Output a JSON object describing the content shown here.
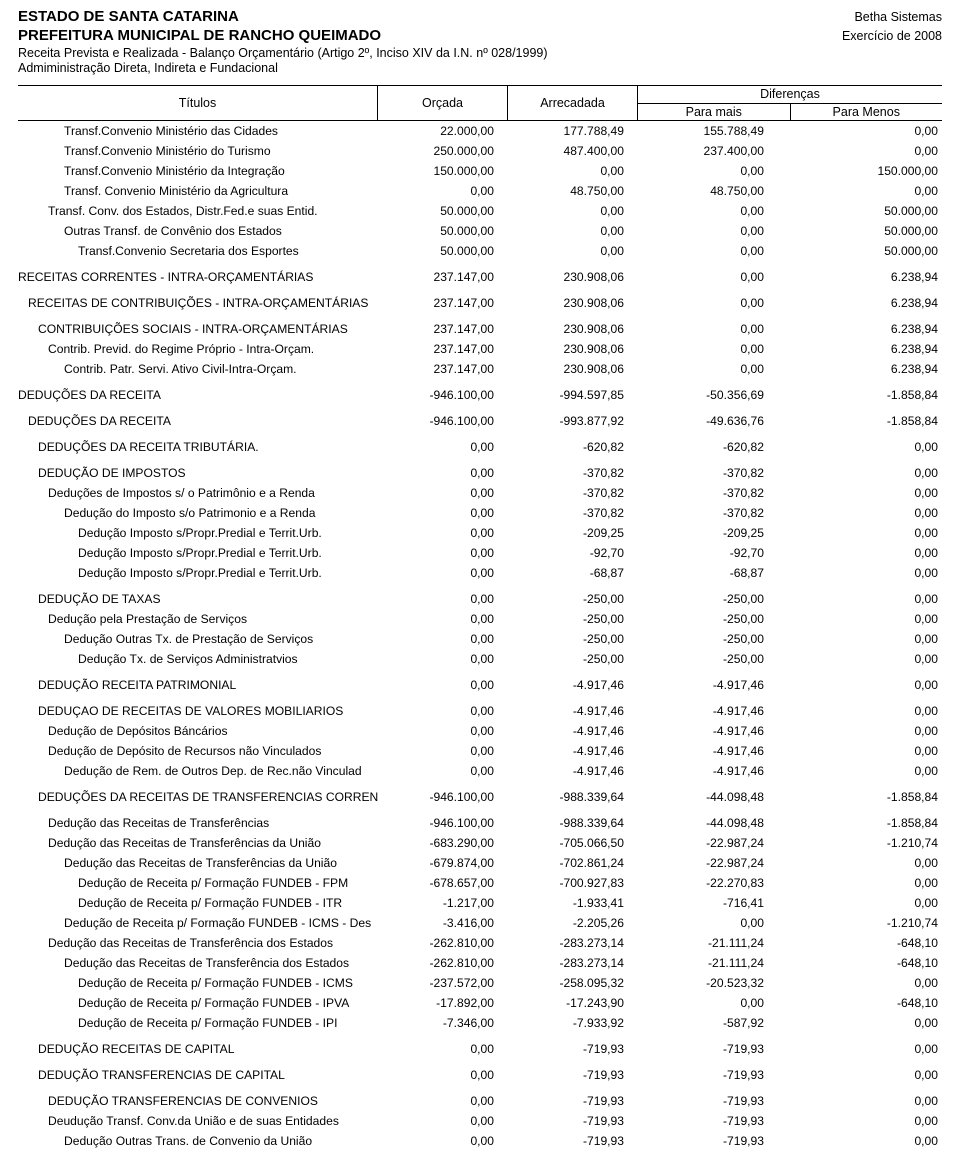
{
  "header": {
    "entity1": "ESTADO DE SANTA CATARINA",
    "entity2": "PREFEITURA MUNICIPAL DE RANCHO QUEIMADO",
    "sub1": "Receita Prevista e Realizada - Balanço Orçamentário (Artigo 2º, Inciso XIV da I.N. nº 028/1999)",
    "sub2": "Admiministração Direta, Indireta e Fundacional",
    "meta1": "Betha Sistemas",
    "meta2": "Exercício de 2008"
  },
  "columns": {
    "titulos": "Títulos",
    "orcada": "Orçada",
    "arrecadada": "Arrecadada",
    "diferencas": "Diferenças",
    "para_mais": "Para mais",
    "para_menos": "Para Menos"
  },
  "rows": [
    {
      "indent": 4,
      "bold": false,
      "gap": false,
      "title": "Transf.Convenio Ministério das Cidades",
      "c1": "22.000,00",
      "c2": "177.788,49",
      "c3": "155.788,49",
      "c4": "0,00"
    },
    {
      "indent": 4,
      "bold": false,
      "gap": false,
      "title": "Transf.Convenio Ministério do Turismo",
      "c1": "250.000,00",
      "c2": "487.400,00",
      "c3": "237.400,00",
      "c4": "0,00"
    },
    {
      "indent": 4,
      "bold": false,
      "gap": false,
      "title": "Transf.Convenio Ministério da Integração",
      "c1": "150.000,00",
      "c2": "0,00",
      "c3": "0,00",
      "c4": "150.000,00"
    },
    {
      "indent": 4,
      "bold": false,
      "gap": false,
      "title": "Transf. Convenio Ministério da Agricultura",
      "c1": "0,00",
      "c2": "48.750,00",
      "c3": "48.750,00",
      "c4": "0,00"
    },
    {
      "indent": 3,
      "bold": false,
      "gap": false,
      "title": "Transf. Conv. dos Estados, Distr.Fed.e suas Entid.",
      "c1": "50.000,00",
      "c2": "0,00",
      "c3": "0,00",
      "c4": "50.000,00"
    },
    {
      "indent": 4,
      "bold": false,
      "gap": false,
      "title": "Outras Transf. de Convênio dos Estados",
      "c1": "50.000,00",
      "c2": "0,00",
      "c3": "0,00",
      "c4": "50.000,00"
    },
    {
      "indent": 5,
      "bold": false,
      "gap": false,
      "title": "Transf.Convenio Secretaria dos Esportes",
      "c1": "50.000,00",
      "c2": "0,00",
      "c3": "0,00",
      "c4": "50.000,00"
    },
    {
      "indent": 0,
      "bold": false,
      "gap": true,
      "title": "RECEITAS CORRENTES - INTRA-ORÇAMENTÁRIAS",
      "c1": "237.147,00",
      "c2": "230.908,06",
      "c3": "0,00",
      "c4": "6.238,94"
    },
    {
      "indent": 1,
      "bold": false,
      "gap": true,
      "title": "RECEITAS DE CONTRIBUIÇÕES - INTRA-ORÇAMENTÁRIAS",
      "c1": "237.147,00",
      "c2": "230.908,06",
      "c3": "0,00",
      "c4": "6.238,94"
    },
    {
      "indent": 2,
      "bold": false,
      "gap": true,
      "title": "CONTRIBUIÇÕES SOCIAIS - INTRA-ORÇAMENTÁRIAS",
      "c1": "237.147,00",
      "c2": "230.908,06",
      "c3": "0,00",
      "c4": "6.238,94"
    },
    {
      "indent": 3,
      "bold": false,
      "gap": false,
      "title": "Contrib. Previd. do Regime Próprio - Intra-Orçam.",
      "c1": "237.147,00",
      "c2": "230.908,06",
      "c3": "0,00",
      "c4": "6.238,94"
    },
    {
      "indent": 4,
      "bold": false,
      "gap": false,
      "title": "Contrib. Patr. Servi. Ativo Civil-Intra-Orçam.",
      "c1": "237.147,00",
      "c2": "230.908,06",
      "c3": "0,00",
      "c4": "6.238,94"
    },
    {
      "indent": 0,
      "bold": false,
      "gap": true,
      "title": "DEDUÇÕES DA RECEITA",
      "c1": "-946.100,00",
      "c2": "-994.597,85",
      "c3": "-50.356,69",
      "c4": "-1.858,84"
    },
    {
      "indent": 1,
      "bold": false,
      "gap": true,
      "title": "DEDUÇÕES DA RECEITA",
      "c1": "-946.100,00",
      "c2": "-993.877,92",
      "c3": "-49.636,76",
      "c4": "-1.858,84"
    },
    {
      "indent": 2,
      "bold": false,
      "gap": true,
      "title": "DEDUÇÕES DA RECEITA TRIBUTÁRIA.",
      "c1": "0,00",
      "c2": "-620,82",
      "c3": "-620,82",
      "c4": "0,00"
    },
    {
      "indent": 2,
      "bold": false,
      "gap": true,
      "title": "DEDUÇÃO DE IMPOSTOS",
      "c1": "0,00",
      "c2": "-370,82",
      "c3": "-370,82",
      "c4": "0,00"
    },
    {
      "indent": 3,
      "bold": false,
      "gap": false,
      "title": "Deduções de Impostos s/ o Patrimônio e a Renda",
      "c1": "0,00",
      "c2": "-370,82",
      "c3": "-370,82",
      "c4": "0,00"
    },
    {
      "indent": 4,
      "bold": false,
      "gap": false,
      "title": "Dedução do Imposto s/o Patrimonio e a Renda",
      "c1": "0,00",
      "c2": "-370,82",
      "c3": "-370,82",
      "c4": "0,00"
    },
    {
      "indent": 5,
      "bold": false,
      "gap": false,
      "title": "Dedução Imposto s/Propr.Predial e Territ.Urb.",
      "c1": "0,00",
      "c2": "-209,25",
      "c3": "-209,25",
      "c4": "0,00"
    },
    {
      "indent": 5,
      "bold": false,
      "gap": false,
      "title": "Dedução Imposto s/Propr.Predial e Territ.Urb.",
      "c1": "0,00",
      "c2": "-92,70",
      "c3": "-92,70",
      "c4": "0,00"
    },
    {
      "indent": 5,
      "bold": false,
      "gap": false,
      "title": "Dedução Imposto s/Propr.Predial e Territ.Urb.",
      "c1": "0,00",
      "c2": "-68,87",
      "c3": "-68,87",
      "c4": "0,00"
    },
    {
      "indent": 2,
      "bold": false,
      "gap": true,
      "title": "DEDUÇÃO DE TAXAS",
      "c1": "0,00",
      "c2": "-250,00",
      "c3": "-250,00",
      "c4": "0,00"
    },
    {
      "indent": 3,
      "bold": false,
      "gap": false,
      "title": "Dedução pela Prestação de Serviços",
      "c1": "0,00",
      "c2": "-250,00",
      "c3": "-250,00",
      "c4": "0,00"
    },
    {
      "indent": 4,
      "bold": false,
      "gap": false,
      "title": "Dedução Outras Tx. de Prestação de Serviços",
      "c1": "0,00",
      "c2": "-250,00",
      "c3": "-250,00",
      "c4": "0,00"
    },
    {
      "indent": 5,
      "bold": false,
      "gap": false,
      "title": "Dedução Tx. de Serviços Administratvios",
      "c1": "0,00",
      "c2": "-250,00",
      "c3": "-250,00",
      "c4": "0,00"
    },
    {
      "indent": 2,
      "bold": false,
      "gap": true,
      "title": "DEDUÇÃO RECEITA PATRIMONIAL",
      "c1": "0,00",
      "c2": "-4.917,46",
      "c3": "-4.917,46",
      "c4": "0,00"
    },
    {
      "indent": 2,
      "bold": false,
      "gap": true,
      "title": "DEDUÇAO DE RECEITAS DE VALORES MOBILIARIOS",
      "c1": "0,00",
      "c2": "-4.917,46",
      "c3": "-4.917,46",
      "c4": "0,00"
    },
    {
      "indent": 3,
      "bold": false,
      "gap": false,
      "title": "Dedução de Depósitos Báncários",
      "c1": "0,00",
      "c2": "-4.917,46",
      "c3": "-4.917,46",
      "c4": "0,00"
    },
    {
      "indent": 3,
      "bold": false,
      "gap": false,
      "title": "Dedução de Depósito de Recursos não Vinculados",
      "c1": "0,00",
      "c2": "-4.917,46",
      "c3": "-4.917,46",
      "c4": "0,00"
    },
    {
      "indent": 4,
      "bold": false,
      "gap": false,
      "title": "Dedução de Rem. de Outros Dep. de Rec.não Vinculad",
      "c1": "0,00",
      "c2": "-4.917,46",
      "c3": "-4.917,46",
      "c4": "0,00"
    },
    {
      "indent": 2,
      "bold": false,
      "gap": true,
      "title": "DEDUÇÕES DA RECEITAS DE TRANSFERENCIAS CORRENTE",
      "c1": "-946.100,00",
      "c2": "-988.339,64",
      "c3": "-44.098,48",
      "c4": "-1.858,84"
    },
    {
      "indent": 3,
      "bold": false,
      "gap": true,
      "title": "Dedução das Receitas de Transferências",
      "c1": "-946.100,00",
      "c2": "-988.339,64",
      "c3": "-44.098,48",
      "c4": "-1.858,84"
    },
    {
      "indent": 3,
      "bold": false,
      "gap": false,
      "title": "Dedução das Receitas de Transferências da União",
      "c1": "-683.290,00",
      "c2": "-705.066,50",
      "c3": "-22.987,24",
      "c4": "-1.210,74"
    },
    {
      "indent": 4,
      "bold": false,
      "gap": false,
      "title": "Dedução das Receitas de Transferências da União",
      "c1": "-679.874,00",
      "c2": "-702.861,24",
      "c3": "-22.987,24",
      "c4": "0,00"
    },
    {
      "indent": 5,
      "bold": false,
      "gap": false,
      "title": "Dedução de Receita p/ Formação FUNDEB - FPM",
      "c1": "-678.657,00",
      "c2": "-700.927,83",
      "c3": "-22.270,83",
      "c4": "0,00"
    },
    {
      "indent": 5,
      "bold": false,
      "gap": false,
      "title": "Dedução de Receita p/ Formação FUNDEB - ITR",
      "c1": "-1.217,00",
      "c2": "-1.933,41",
      "c3": "-716,41",
      "c4": "0,00"
    },
    {
      "indent": 4,
      "bold": false,
      "gap": false,
      "title": "Dedução de Receita p/ Formação FUNDEB - ICMS - Des",
      "c1": "-3.416,00",
      "c2": "-2.205,26",
      "c3": "0,00",
      "c4": "-1.210,74"
    },
    {
      "indent": 3,
      "bold": false,
      "gap": false,
      "title": "Dedução das Receitas de Transferência dos Estados",
      "c1": "-262.810,00",
      "c2": "-283.273,14",
      "c3": "-21.111,24",
      "c4": "-648,10"
    },
    {
      "indent": 4,
      "bold": false,
      "gap": false,
      "title": "Dedução das Receitas de Transferência dos Estados",
      "c1": "-262.810,00",
      "c2": "-283.273,14",
      "c3": "-21.111,24",
      "c4": "-648,10"
    },
    {
      "indent": 5,
      "bold": false,
      "gap": false,
      "title": "Dedução de Receita p/ Formação FUNDEB - ICMS",
      "c1": "-237.572,00",
      "c2": "-258.095,32",
      "c3": "-20.523,32",
      "c4": "0,00"
    },
    {
      "indent": 5,
      "bold": false,
      "gap": false,
      "title": "Dedução de Receita p/ Formação FUNDEB - IPVA",
      "c1": "-17.892,00",
      "c2": "-17.243,90",
      "c3": "0,00",
      "c4": "-648,10"
    },
    {
      "indent": 5,
      "bold": false,
      "gap": false,
      "title": "Dedução de Receita p/ Formação FUNDEB - IPI",
      "c1": "-7.346,00",
      "c2": "-7.933,92",
      "c3": "-587,92",
      "c4": "0,00"
    },
    {
      "indent": 2,
      "bold": false,
      "gap": true,
      "title": "DEDUÇÃO RECEITAS DE CAPITAL",
      "c1": "0,00",
      "c2": "-719,93",
      "c3": "-719,93",
      "c4": "0,00"
    },
    {
      "indent": 2,
      "bold": false,
      "gap": true,
      "title": "DEDUÇÃO TRANSFERENCIAS DE CAPITAL",
      "c1": "0,00",
      "c2": "-719,93",
      "c3": "-719,93",
      "c4": "0,00"
    },
    {
      "indent": 3,
      "bold": false,
      "gap": true,
      "title": "DEDUÇÃO TRANSFERENCIAS DE CONVENIOS",
      "c1": "0,00",
      "c2": "-719,93",
      "c3": "-719,93",
      "c4": "0,00"
    },
    {
      "indent": 3,
      "bold": false,
      "gap": false,
      "title": "Deudução Transf. Conv.da União e de suas Entidades",
      "c1": "0,00",
      "c2": "-719,93",
      "c3": "-719,93",
      "c4": "0,00"
    },
    {
      "indent": 4,
      "bold": false,
      "gap": false,
      "title": "Dedução Outras Trans. de Convenio da União",
      "c1": "0,00",
      "c2": "-719,93",
      "c3": "-719,93",
      "c4": "0,00"
    }
  ]
}
